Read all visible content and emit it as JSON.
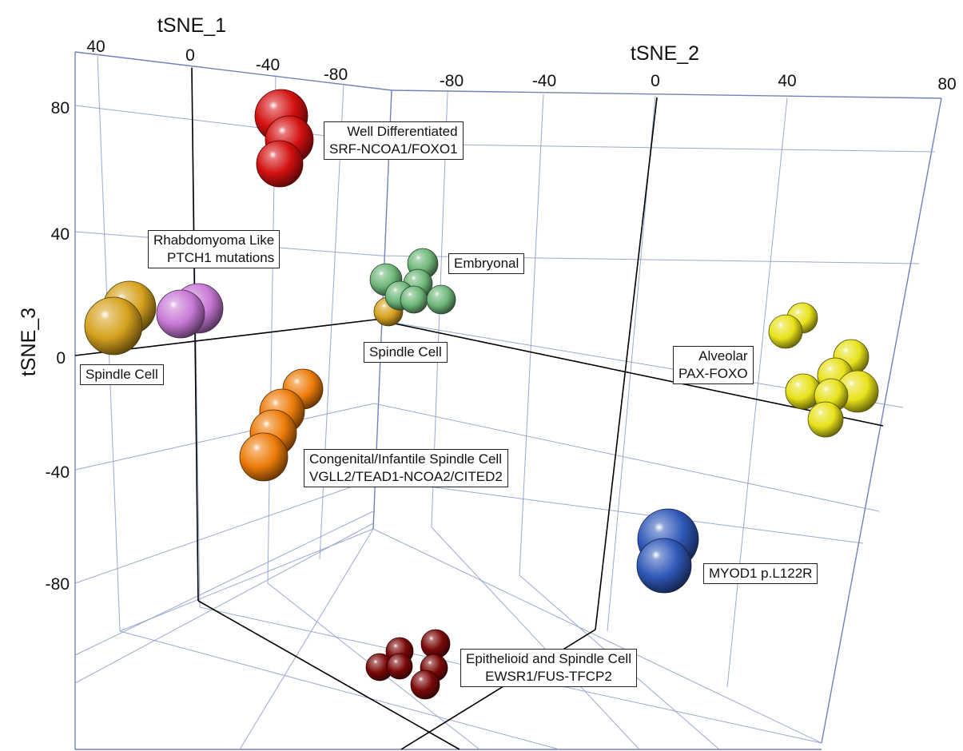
{
  "chart_data": {
    "type": "scatter",
    "projection": "3d",
    "axes": {
      "x": {
        "label": "tSNE_1",
        "ticks": [
          "40",
          "0",
          "-40",
          "-80"
        ]
      },
      "y": {
        "label": "tSNE_2",
        "ticks": [
          "-80",
          "-40",
          "0",
          "40",
          "80"
        ]
      },
      "z": {
        "label": "tSNE_3",
        "ticks": [
          "80",
          "40",
          "0",
          "-40",
          "-80"
        ]
      }
    },
    "grid": true,
    "colors": {
      "well_differentiated": "#d41010",
      "embryonal": "#6fb87a",
      "spindle_cell": "#d6a21e",
      "rhabdomyoma_like": "#c87ad6",
      "congenital_infantile": "#ee7c0a",
      "alveolar": "#e8e21a",
      "myod1": "#2f58b8",
      "epithelioid_spindle": "#7a0808"
    },
    "clusters": [
      {
        "key": "well_differentiated",
        "label_lines": [
          "Well Differentiated",
          "SRF-NCOA1/FOXO1"
        ]
      },
      {
        "key": "rhabdomyoma_like",
        "label_lines": [
          "Rhabdomyoma Like",
          "PTCH1 mutations"
        ]
      },
      {
        "key": "embryonal",
        "label_lines": [
          "Embryonal"
        ]
      },
      {
        "key": "spindle_cell_center",
        "label_lines": [
          "Spindle Cell"
        ]
      },
      {
        "key": "spindle_cell_left",
        "label_lines": [
          "Spindle Cell"
        ]
      },
      {
        "key": "congenital_infantile",
        "label_lines": [
          "Congenital/Infantile Spindle Cell",
          "VGLL2/TEAD1-NCOA2/CITED2"
        ]
      },
      {
        "key": "alveolar",
        "label_lines": [
          "Alveolar",
          "PAX-FOXO"
        ]
      },
      {
        "key": "myod1",
        "label_lines": [
          "MYOD1 p.L122R"
        ]
      },
      {
        "key": "epithelioid_spindle",
        "label_lines": [
          "Epithelioid and Spindle Cell",
          "EWSR1/FUS-TFCP2"
        ]
      }
    ]
  }
}
